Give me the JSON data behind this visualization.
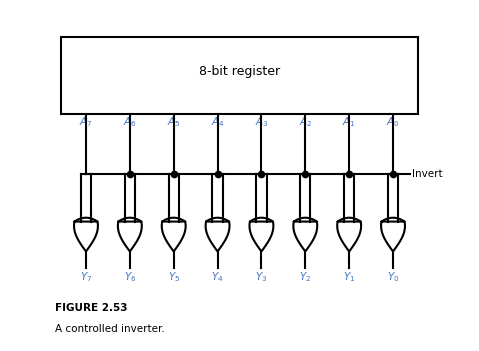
{
  "title": "8-bit register",
  "figure_label": "FIGURE 2.53",
  "figure_caption": "A controlled inverter.",
  "invert_label": "Invert",
  "A_labels": [
    "7",
    "6",
    "5",
    "4",
    "3",
    "2",
    "1",
    "0"
  ],
  "Y_labels": [
    "7",
    "6",
    "5",
    "4",
    "3",
    "2",
    "1",
    "0"
  ],
  "num_gates": 8,
  "bg_color": "#ffffff",
  "line_color": "#000000",
  "label_color": "#4472c4",
  "text_color": "#000000",
  "fig_width": 4.79,
  "fig_height": 3.51,
  "dpi": 100
}
